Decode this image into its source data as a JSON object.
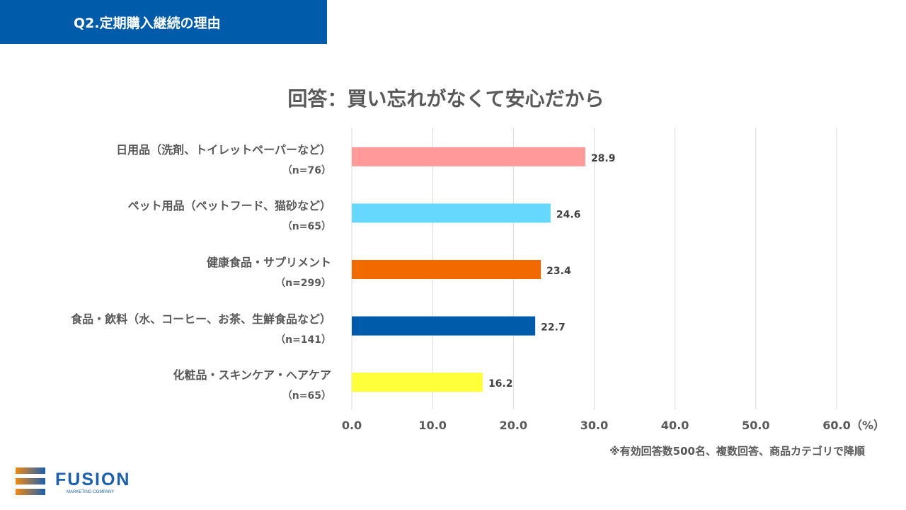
{
  "header": {
    "title": "Q2.定期購入継続の理由"
  },
  "chart_data": {
    "type": "bar",
    "orientation": "horizontal",
    "title": "回答：買い忘れがなくて安心だから",
    "categories": [
      "日用品（洗剤、トイレットペーパーなど）",
      "ペット用品（ペットフード、猫砂など）",
      "健康食品・サプリメント",
      "食品・飲料（水、コーヒー、お茶、生鮮食品など）",
      "化粧品・スキンケア・ヘアケア"
    ],
    "sample_sizes": [
      "（n=76）",
      "（n=65）",
      "（n=299）",
      "（n=141）",
      "（n=65）"
    ],
    "values": [
      28.9,
      24.6,
      23.4,
      22.7,
      16.2
    ],
    "value_labels": [
      "28.9",
      "24.6",
      "23.4",
      "22.7",
      "16.2"
    ],
    "colors": [
      "#ff999a",
      "#66d7fd",
      "#f06a00",
      "#005bab",
      "#ffff3a"
    ],
    "xlim": [
      0,
      60
    ],
    "xticks": [
      "0.0",
      "10.0",
      "20.0",
      "30.0",
      "40.0",
      "50.0",
      "60.0"
    ],
    "xunit": "（%）",
    "grid": true
  },
  "footnote": "※有効回答数500名、複数回答、商品カテゴリで降順",
  "logo": {
    "name": "FUSION",
    "sub": "MARKETING COMPANY"
  }
}
